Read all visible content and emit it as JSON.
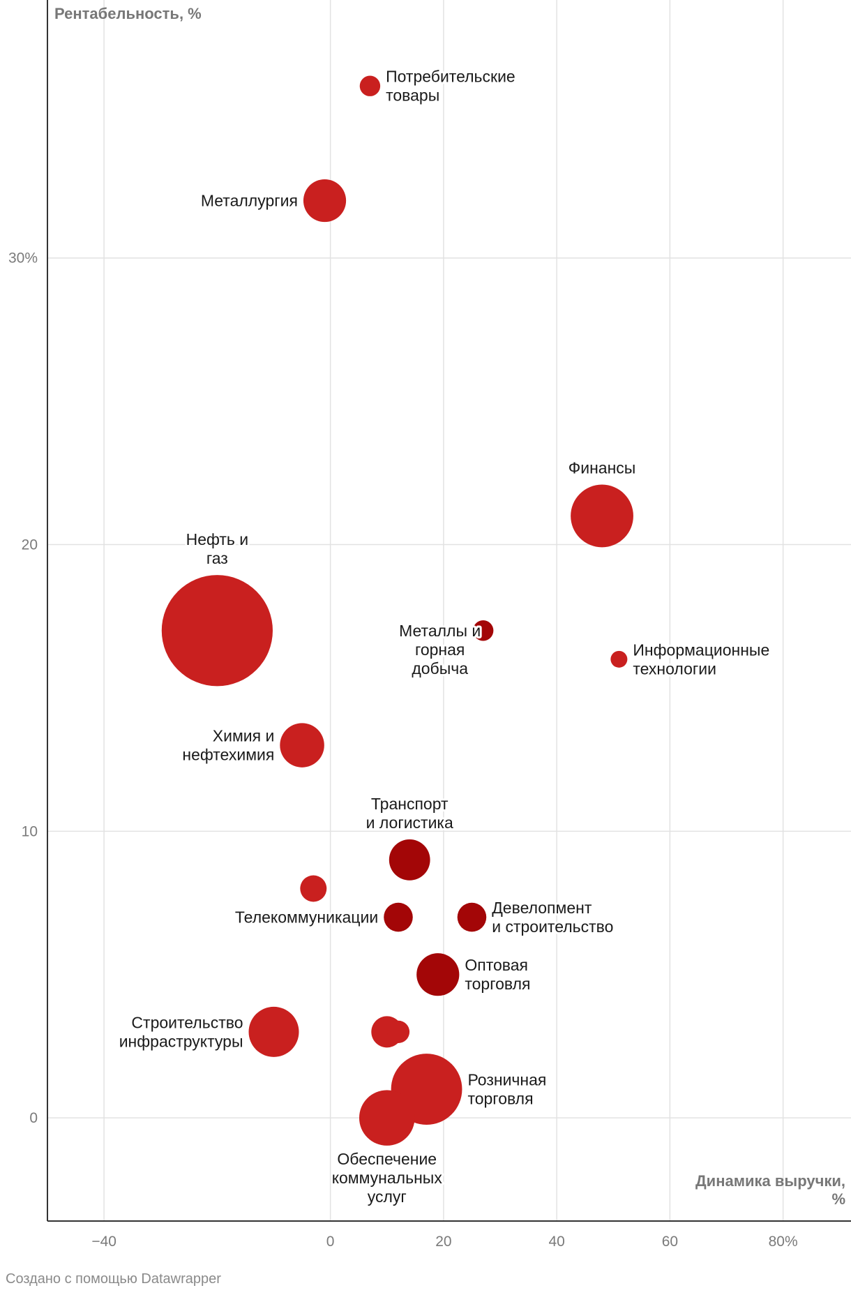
{
  "chart_data": {
    "type": "scatter",
    "variant": "bubble",
    "ylabel": "Рентабельность, %",
    "xlabel": "Динамика выручки, %",
    "xlim": [
      -50,
      92
    ],
    "ylim": [
      -3.6,
      39
    ],
    "x_ticks": [
      {
        "value": -40,
        "label": "−40"
      },
      {
        "value": 0,
        "label": "0"
      },
      {
        "value": 20,
        "label": "20"
      },
      {
        "value": 40,
        "label": "40"
      },
      {
        "value": 60,
        "label": "60"
      },
      {
        "value": 80,
        "label": "80%"
      }
    ],
    "y_ticks": [
      {
        "value": 30,
        "label": "30%"
      },
      {
        "value": 20,
        "label": "20"
      },
      {
        "value": 10,
        "label": "10"
      },
      {
        "value": 0,
        "label": "0"
      }
    ],
    "grid": true,
    "colors": {
      "light": "#c9201f",
      "dark": "#a30607",
      "grid": "#e2e2e2",
      "axis": "#333333"
    },
    "points": [
      {
        "label": "Потребительские товары",
        "x": 7,
        "y": 36,
        "size": 1.5,
        "shade": "light",
        "label_pos": "right"
      },
      {
        "label": "Металлургия",
        "x": -1,
        "y": 32,
        "size": 6.5,
        "shade": "light",
        "label_pos": "left"
      },
      {
        "label": "Финансы",
        "x": 48,
        "y": 21,
        "size": 14,
        "shade": "light",
        "label_pos": "top"
      },
      {
        "label": "Нефть и газ",
        "x": -20,
        "y": 17,
        "size": 44,
        "shade": "light",
        "label_pos": "top"
      },
      {
        "label": "Металлы и горная добыча",
        "x": 27,
        "y": 17,
        "size": 1.5,
        "shade": "dark",
        "label_pos": "left"
      },
      {
        "label": "Информационные технологии",
        "x": 51,
        "y": 16,
        "size": 1,
        "shade": "light",
        "label_pos": "right"
      },
      {
        "label": "Химия и нефтехимия",
        "x": -5,
        "y": 13,
        "size": 7,
        "shade": "light",
        "label_pos": "left"
      },
      {
        "label": "Транспорт и логистика",
        "x": 14,
        "y": 9,
        "size": 6,
        "shade": "dark",
        "label_pos": "top"
      },
      {
        "label": "",
        "x": -3,
        "y": 8,
        "size": 2.5,
        "shade": "light",
        "label_pos": "none"
      },
      {
        "label": "Телекоммуникации",
        "x": 12,
        "y": 7,
        "size": 3,
        "shade": "dark",
        "label_pos": "left"
      },
      {
        "label": "Девелопмент и строительство",
        "x": 25,
        "y": 7,
        "size": 3,
        "shade": "dark",
        "label_pos": "right"
      },
      {
        "label": "Оптовая торговля",
        "x": 19,
        "y": 5,
        "size": 6.5,
        "shade": "dark",
        "label_pos": "right"
      },
      {
        "label": "Строительство инфраструктуры",
        "x": -10,
        "y": 3,
        "size": 9,
        "shade": "light",
        "label_pos": "left"
      },
      {
        "label": "",
        "x": 12,
        "y": 3,
        "size": 1.8,
        "shade": "light",
        "label_pos": "none"
      },
      {
        "label": "",
        "x": 10,
        "y": 3,
        "size": 3.5,
        "shade": "light",
        "label_pos": "none"
      },
      {
        "label": "Розничная торговля",
        "x": 17,
        "y": 1,
        "size": 18,
        "shade": "light",
        "label_pos": "right"
      },
      {
        "label": "Обеспечение коммунальных услуг",
        "x": 10,
        "y": 0,
        "size": 11,
        "shade": "light",
        "label_pos": "bottom"
      }
    ]
  },
  "credit": "Создано с помощью Datawrapper"
}
